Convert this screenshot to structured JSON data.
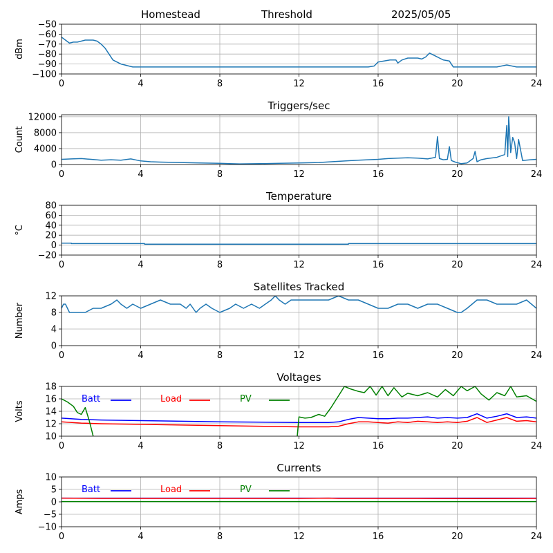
{
  "header": {
    "site": "Homestead",
    "mode": "Threshold",
    "date": "2025/05/05"
  },
  "colors": {
    "default_line": "#1f77b4",
    "batt": "#0000ff",
    "load": "#ff0000",
    "pv": "#008000",
    "grid": "#b0b0b0"
  },
  "chart_data": [
    {
      "type": "line",
      "title": "",
      "ylabel": "dBm",
      "xlim": [
        0,
        24
      ],
      "ylim": [
        -100,
        -50
      ],
      "xticks": [
        "0",
        "4",
        "8",
        "12",
        "16",
        "20",
        "24"
      ],
      "yticks": [
        "−50",
        "−60",
        "−70",
        "−80",
        "−90",
        "−100"
      ],
      "ytick_values": [
        -50,
        -60,
        -70,
        -80,
        -90,
        -100
      ],
      "grid": true,
      "series": [
        {
          "x": [
            0,
            0.2,
            0.4,
            0.6,
            0.8,
            1.0,
            1.2,
            1.4,
            1.6,
            1.8,
            2.0,
            2.2,
            2.4,
            2.6,
            2.8,
            3.0,
            3.2,
            3.4,
            3.6,
            4.0,
            8.0,
            12.0,
            14.0,
            15.0,
            15.5,
            15.8,
            16.0,
            16.3,
            16.6,
            16.9,
            17.0,
            17.2,
            17.5,
            17.8,
            18.0,
            18.2,
            18.4,
            18.6,
            18.9,
            19.1,
            19.3,
            19.6,
            19.8,
            20.0,
            21.0,
            22.0,
            22.5,
            23.0,
            24.0
          ],
          "y": [
            -63,
            -66,
            -69,
            -68,
            -68,
            -67,
            -66,
            -66,
            -66,
            -67,
            -70,
            -74,
            -80,
            -86,
            -88,
            -90,
            -91,
            -92,
            -93,
            -93,
            -93,
            -93,
            -93,
            -93,
            -93,
            -92,
            -88,
            -87,
            -86,
            -86,
            -89,
            -86,
            -84,
            -84,
            -84,
            -85,
            -83,
            -79,
            -82,
            -84,
            -86,
            -87,
            -93,
            -93,
            -93,
            -93,
            -91,
            -93,
            -93
          ]
        }
      ]
    },
    {
      "type": "line",
      "title": "Triggers/sec",
      "ylabel": "Count",
      "xlim": [
        0,
        24
      ],
      "ylim": [
        0,
        12500
      ],
      "xticks": [
        "0",
        "4",
        "8",
        "12",
        "16",
        "20",
        "24"
      ],
      "yticks": [
        "0",
        "4000",
        "8000",
        "12000"
      ],
      "ytick_values": [
        0,
        4000,
        8000,
        12000
      ],
      "grid": true,
      "series": [
        {
          "x": [
            0,
            0.5,
            1,
            1.5,
            2,
            2.5,
            3,
            3.5,
            4,
            4.5,
            5,
            6,
            7,
            8,
            8.5,
            9,
            10,
            11,
            12,
            13,
            14,
            15,
            15.5,
            16,
            16.5,
            17,
            17.5,
            18,
            18.5,
            18.9,
            19.0,
            19.1,
            19.3,
            19.5,
            19.6,
            19.7,
            19.9,
            20.2,
            20.5,
            20.8,
            20.9,
            21.0,
            21.2,
            21.5,
            22.0,
            22.4,
            22.5,
            22.55,
            22.6,
            22.7,
            22.8,
            22.9,
            23.0,
            23.1,
            23.3,
            23.7,
            24
          ],
          "y": [
            1300,
            1400,
            1500,
            1300,
            1100,
            1200,
            1100,
            1400,
            900,
            700,
            600,
            500,
            400,
            300,
            200,
            150,
            200,
            300,
            400,
            500,
            800,
            1100,
            1200,
            1300,
            1500,
            1600,
            1700,
            1600,
            1400,
            1800,
            7000,
            1500,
            1200,
            1300,
            4500,
            1000,
            600,
            200,
            400,
            1500,
            3300,
            700,
            1200,
            1500,
            1800,
            2500,
            9800,
            2000,
            12000,
            3000,
            6800,
            5500,
            1500,
            6300,
            1000,
            1200,
            1300
          ]
        }
      ]
    },
    {
      "type": "line",
      "title": "Temperature",
      "ylabel": "°C",
      "xlim": [
        0,
        24
      ],
      "ylim": [
        -20,
        80
      ],
      "xticks": [
        "0",
        "4",
        "8",
        "12",
        "16",
        "20",
        "24"
      ],
      "yticks": [
        "−20",
        "0",
        "20",
        "40",
        "60",
        "80"
      ],
      "ytick_values": [
        -20,
        0,
        20,
        40,
        60,
        80
      ],
      "grid": true,
      "series": [
        {
          "x": [
            0,
            0.5,
            0.5,
            4.2,
            4.2,
            14.5,
            14.5,
            24
          ],
          "y": [
            4,
            4,
            3,
            3,
            2,
            2,
            3,
            3
          ]
        }
      ]
    },
    {
      "type": "line",
      "title": "Satellites Tracked",
      "ylabel": "Number",
      "xlim": [
        0,
        24
      ],
      "ylim": [
        0,
        12
      ],
      "xticks": [
        "0",
        "4",
        "8",
        "12",
        "16",
        "20",
        "24"
      ],
      "yticks": [
        "0",
        "4",
        "8",
        "12"
      ],
      "ytick_values": [
        0,
        4,
        8,
        12
      ],
      "grid": true,
      "series": [
        {
          "x": [
            0,
            0.1,
            0.2,
            0.3,
            0.4,
            1.2,
            1.6,
            2.0,
            2.5,
            2.8,
            3.0,
            3.3,
            3.6,
            4.0,
            4.5,
            5.0,
            5.5,
            6.0,
            6.3,
            6.5,
            6.8,
            7.0,
            7.3,
            7.6,
            8.0,
            8.5,
            8.8,
            9.2,
            9.6,
            10.0,
            10.3,
            10.6,
            10.8,
            11.0,
            11.3,
            11.6,
            12.0,
            12.5,
            13.0,
            13.5,
            14.0,
            14.5,
            15.0,
            15.5,
            16.0,
            16.5,
            17.0,
            17.5,
            18.0,
            18.5,
            19.0,
            19.5,
            20.0,
            20.2,
            20.5,
            21.0,
            21.5,
            22.0,
            22.5,
            23.0,
            23.5,
            24.0
          ],
          "y": [
            9,
            10,
            10,
            9,
            8,
            8,
            9,
            9,
            10,
            11,
            10,
            9,
            10,
            9,
            10,
            11,
            10,
            10,
            9,
            10,
            8,
            9,
            10,
            9,
            8,
            9,
            10,
            9,
            10,
            9,
            10,
            11,
            12,
            11,
            10,
            11,
            11,
            11,
            11,
            11,
            12,
            11,
            11,
            10,
            9,
            9,
            10,
            10,
            9,
            10,
            10,
            9,
            8,
            8,
            9,
            11,
            11,
            10,
            10,
            10,
            11,
            9
          ]
        }
      ]
    },
    {
      "type": "line",
      "title": "Voltages",
      "ylabel": "Volts",
      "xlim": [
        0,
        24
      ],
      "ylim": [
        10,
        18
      ],
      "xticks": [
        "0",
        "4",
        "8",
        "12",
        "16",
        "20",
        "24"
      ],
      "yticks": [
        "10",
        "12",
        "14",
        "16",
        "18"
      ],
      "ytick_values": [
        10,
        12,
        14,
        16,
        18
      ],
      "grid": true,
      "legend": "top-left",
      "series": [
        {
          "name": "Batt",
          "color_key": "batt",
          "x": [
            0,
            1,
            2,
            4,
            8,
            12,
            13.5,
            14,
            14.5,
            15,
            15.5,
            16,
            16.5,
            17,
            17.5,
            18,
            18.5,
            19,
            19.5,
            20,
            20.5,
            21,
            21.5,
            22,
            22.5,
            23,
            23.5,
            24
          ],
          "y": [
            12.9,
            12.7,
            12.6,
            12.5,
            12.3,
            12.2,
            12.2,
            12.3,
            12.7,
            13.0,
            12.9,
            12.8,
            12.8,
            12.9,
            12.9,
            13.0,
            13.1,
            12.9,
            13.0,
            12.9,
            13.0,
            13.6,
            12.9,
            13.2,
            13.6,
            13.0,
            13.1,
            12.9
          ]
        },
        {
          "name": "Load",
          "color_key": "load",
          "x": [
            0,
            1,
            2,
            4,
            8,
            12,
            13.5,
            14,
            14.5,
            15,
            15.5,
            16,
            16.5,
            17,
            17.5,
            18,
            18.5,
            19,
            19.5,
            20,
            20.5,
            21,
            21.5,
            22,
            22.5,
            23,
            23.5,
            24
          ],
          "y": [
            12.3,
            12.1,
            12.0,
            11.9,
            11.7,
            11.5,
            11.5,
            11.6,
            12.0,
            12.3,
            12.3,
            12.2,
            12.1,
            12.3,
            12.2,
            12.4,
            12.3,
            12.2,
            12.3,
            12.2,
            12.4,
            13.0,
            12.2,
            12.6,
            13.0,
            12.4,
            12.5,
            12.3
          ]
        },
        {
          "name": "PV",
          "color_key": "pv",
          "x": [
            0,
            0.3,
            0.6,
            0.8,
            1.0,
            1.2,
            1.4,
            1.6,
            1.8,
            11.9,
            12.0,
            12.3,
            12.6,
            13.0,
            13.3,
            13.6,
            14.0,
            14.3,
            14.6,
            15.0,
            15.3,
            15.6,
            15.9,
            16.2,
            16.5,
            16.8,
            17.2,
            17.5,
            18.0,
            18.5,
            19.0,
            19.4,
            19.8,
            20.2,
            20.5,
            20.9,
            21.2,
            21.6,
            22.0,
            22.4,
            22.7,
            23.0,
            23.5,
            24.0
          ],
          "y": [
            16.0,
            15.5,
            14.8,
            13.8,
            13.5,
            14.6,
            12.5,
            10.0,
            9.5,
            9.5,
            13.1,
            12.9,
            13.0,
            13.5,
            13.2,
            14.5,
            16.5,
            18.0,
            17.6,
            17.2,
            17.0,
            18.0,
            16.6,
            18.0,
            16.5,
            17.8,
            16.3,
            16.9,
            16.5,
            17.0,
            16.3,
            17.5,
            16.5,
            18.0,
            17.3,
            18.0,
            16.8,
            15.8,
            17.0,
            16.5,
            18.0,
            16.3,
            16.5,
            15.6
          ]
        }
      ]
    },
    {
      "type": "line",
      "title": "Currents",
      "ylabel": "Amps",
      "xlim": [
        0,
        24
      ],
      "ylim": [
        -10,
        10
      ],
      "xticks": [
        "0",
        "4",
        "8",
        "12",
        "16",
        "20",
        "24"
      ],
      "yticks": [
        "−10",
        "−5",
        "0",
        "5",
        "10"
      ],
      "ytick_values": [
        -10,
        -5,
        0,
        5,
        10
      ],
      "grid": true,
      "legend": "top-left",
      "series": [
        {
          "name": "Batt",
          "color_key": "batt",
          "x": [
            0,
            24
          ],
          "y": [
            1.5,
            1.5
          ]
        },
        {
          "name": "Load",
          "color_key": "load",
          "x": [
            0,
            2,
            6,
            12,
            13.5,
            14,
            18,
            21,
            24
          ],
          "y": [
            1.5,
            1.4,
            1.4,
            1.4,
            1.5,
            1.4,
            1.4,
            1.3,
            1.4
          ]
        },
        {
          "name": "PV",
          "color_key": "pv",
          "x": [
            0,
            24
          ],
          "y": [
            0.1,
            0.1
          ]
        }
      ]
    }
  ]
}
